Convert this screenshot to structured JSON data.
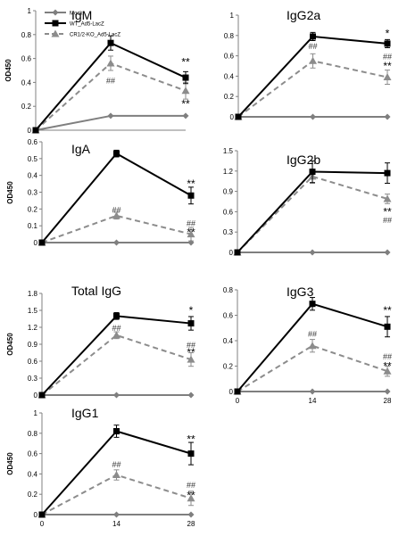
{
  "legend": {
    "placement": "top-left inside IgM panel",
    "entries": [
      {
        "label": "Mock",
        "color": "#7f7f7f",
        "dash": "solid",
        "marker": "diamond"
      },
      {
        "label": "WT_Ad5-LacZ",
        "color": "#000000",
        "dash": "solid",
        "marker": "square"
      },
      {
        "label": "CR1/2-KO_Ad5-LacZ",
        "color": "#8c8c8c",
        "dash": "dashed",
        "marker": "triangle"
      }
    ]
  },
  "chart_data": [
    {
      "type": "line",
      "title": "IgM",
      "ylabel": "OD450",
      "x": [
        0,
        14,
        28
      ],
      "ylim": [
        0,
        1
      ],
      "yticks": [
        "0",
        "0.2",
        "0.4",
        "0.6",
        "0.8",
        "1"
      ],
      "xticks": [],
      "series": [
        {
          "name": "Mock",
          "values": [
            0,
            0.12,
            0.12
          ],
          "errors": [
            0,
            0,
            0
          ]
        },
        {
          "name": "WT_Ad5-LacZ",
          "values": [
            0,
            0.73,
            0.44
          ],
          "errors": [
            0,
            0.06,
            0.05
          ]
        },
        {
          "name": "CR1/2-KO_Ad5-LacZ",
          "values": [
            0,
            0.56,
            0.33
          ],
          "errors": [
            0,
            0.06,
            0.07
          ]
        }
      ],
      "annotations": [
        {
          "x": 14,
          "y": 0.42,
          "text": "##"
        },
        {
          "x": 28,
          "y": 0.57,
          "text": "**"
        },
        {
          "x": 28,
          "y": 0.22,
          "text": "**"
        }
      ]
    },
    {
      "type": "line",
      "title": "IgG2a",
      "ylabel": "",
      "x": [
        0,
        14,
        28
      ],
      "ylim": [
        0,
        1
      ],
      "yticks": [
        "0",
        "0.2",
        "0.4",
        "0.6",
        "0.8",
        "1"
      ],
      "xticks": [],
      "series": [
        {
          "name": "Mock",
          "values": [
            0,
            0,
            0
          ],
          "errors": [
            0,
            0,
            0
          ]
        },
        {
          "name": "WT_Ad5-LacZ",
          "values": [
            0,
            0.79,
            0.72
          ],
          "errors": [
            0,
            0.04,
            0.04
          ]
        },
        {
          "name": "CR1/2-KO_Ad5-LacZ",
          "values": [
            0,
            0.55,
            0.39
          ],
          "errors": [
            0,
            0.07,
            0.07
          ]
        }
      ],
      "annotations": [
        {
          "x": 14,
          "y": 0.7,
          "text": "##"
        },
        {
          "x": 28,
          "y": 0.82,
          "text": "*"
        },
        {
          "x": 28,
          "y": 0.6,
          "text": "##"
        },
        {
          "x": 28,
          "y": 0.5,
          "text": "**"
        }
      ]
    },
    {
      "type": "line",
      "title": "IgA",
      "ylabel": "OD450",
      "x": [
        0,
        14,
        28
      ],
      "ylim": [
        0,
        0.6
      ],
      "yticks": [
        "0",
        "0.1",
        "0.2",
        "0.3",
        "0.4",
        "0.5",
        "0.6"
      ],
      "xticks": [],
      "series": [
        {
          "name": "Mock",
          "values": [
            0,
            0,
            0
          ],
          "errors": [
            0,
            0,
            0
          ]
        },
        {
          "name": "WT_Ad5-LacZ",
          "values": [
            0,
            0.53,
            0.28
          ],
          "errors": [
            0,
            0.02,
            0.05
          ]
        },
        {
          "name": "CR1/2-KO_Ad5-LacZ",
          "values": [
            0,
            0.16,
            0.05
          ],
          "errors": [
            0,
            0.02,
            0.04
          ]
        }
      ],
      "annotations": [
        {
          "x": 14,
          "y": 0.2,
          "text": "##"
        },
        {
          "x": 28,
          "y": 0.35,
          "text": "**"
        },
        {
          "x": 28,
          "y": 0.12,
          "text": "##"
        },
        {
          "x": 28,
          "y": 0.06,
          "text": "**"
        }
      ]
    },
    {
      "type": "line",
      "title": "IgG2b",
      "ylabel": "",
      "x": [
        0,
        14,
        28
      ],
      "ylim": [
        0,
        1.5
      ],
      "yticks": [
        "0",
        "0.3",
        "0.6",
        "0.9",
        "1.2",
        "1.5"
      ],
      "xticks": [],
      "series": [
        {
          "name": "Mock",
          "values": [
            0,
            0,
            0
          ],
          "errors": [
            0,
            0,
            0
          ]
        },
        {
          "name": "WT_Ad5-LacZ",
          "values": [
            0,
            1.19,
            1.17
          ],
          "errors": [
            0,
            0.16,
            0.15
          ]
        },
        {
          "name": "CR1/2-KO_Ad5-LacZ",
          "values": [
            0,
            1.12,
            0.79
          ],
          "errors": [
            0,
            0.1,
            0.07
          ]
        }
      ],
      "annotations": [
        {
          "x": 28,
          "y": 0.6,
          "text": "**"
        },
        {
          "x": 28,
          "y": 0.49,
          "text": "##"
        }
      ]
    },
    {
      "type": "line",
      "title": "Total IgG",
      "ylabel": "OD450",
      "x": [
        0,
        14,
        28
      ],
      "ylim": [
        0,
        1.8
      ],
      "yticks": [
        "0",
        "0.3",
        "0.6",
        "0.9",
        "1.2",
        "1.5",
        "1.8"
      ],
      "xticks": [],
      "series": [
        {
          "name": "Mock",
          "values": [
            0,
            0,
            0
          ],
          "errors": [
            0,
            0,
            0
          ]
        },
        {
          "name": "WT_Ad5-LacZ",
          "values": [
            0,
            1.4,
            1.27
          ],
          "errors": [
            0,
            0.06,
            0.12
          ]
        },
        {
          "name": "CR1/2-KO_Ad5-LacZ",
          "values": [
            0,
            1.06,
            0.63
          ],
          "errors": [
            0,
            0.06,
            0.12
          ]
        }
      ],
      "annotations": [
        {
          "x": 14,
          "y": 1.2,
          "text": "##"
        },
        {
          "x": 28,
          "y": 1.5,
          "text": "*"
        },
        {
          "x": 28,
          "y": 0.9,
          "text": "##"
        },
        {
          "x": 28,
          "y": 0.76,
          "text": "**"
        }
      ]
    },
    {
      "type": "line",
      "title": "IgG3",
      "ylabel": "",
      "x": [
        0,
        14,
        28
      ],
      "ylim": [
        0,
        0.8
      ],
      "yticks": [
        "0",
        "0.2",
        "0.4",
        "0.6",
        "0.8"
      ],
      "xticks": [
        "0",
        "14",
        "28"
      ],
      "series": [
        {
          "name": "Mock",
          "values": [
            0,
            0,
            0
          ],
          "errors": [
            0,
            0,
            0
          ]
        },
        {
          "name": "WT_Ad5-LacZ",
          "values": [
            0,
            0.69,
            0.51
          ],
          "errors": [
            0,
            0.05,
            0.08
          ]
        },
        {
          "name": "CR1/2-KO_Ad5-LacZ",
          "values": [
            0,
            0.36,
            0.16
          ],
          "errors": [
            0,
            0.05,
            0.04
          ]
        }
      ],
      "annotations": [
        {
          "x": 14,
          "y": 0.46,
          "text": "##"
        },
        {
          "x": 28,
          "y": 0.64,
          "text": "**"
        },
        {
          "x": 28,
          "y": 0.28,
          "text": "##"
        },
        {
          "x": 28,
          "y": 0.2,
          "text": "**"
        }
      ]
    },
    {
      "type": "line",
      "title": "IgG1",
      "ylabel": "OD450",
      "x": [
        0,
        14,
        28
      ],
      "ylim": [
        0,
        1
      ],
      "yticks": [
        "0",
        "0.2",
        "0.4",
        "0.6",
        "0.8",
        "1"
      ],
      "xticks": [
        "0",
        "14",
        "28"
      ],
      "series": [
        {
          "name": "Mock",
          "values": [
            0,
            0,
            0
          ],
          "errors": [
            0,
            0,
            0
          ]
        },
        {
          "name": "WT_Ad5-LacZ",
          "values": [
            0,
            0.82,
            0.6
          ],
          "errors": [
            0,
            0.06,
            0.11
          ]
        },
        {
          "name": "CR1/2-KO_Ad5-LacZ",
          "values": [
            0,
            0.39,
            0.16
          ],
          "errors": [
            0,
            0.05,
            0.07
          ]
        }
      ],
      "annotations": [
        {
          "x": 14,
          "y": 0.5,
          "text": "##"
        },
        {
          "x": 28,
          "y": 0.74,
          "text": "**"
        },
        {
          "x": 28,
          "y": 0.3,
          "text": "##"
        },
        {
          "x": 28,
          "y": 0.19,
          "text": "**"
        }
      ]
    }
  ]
}
